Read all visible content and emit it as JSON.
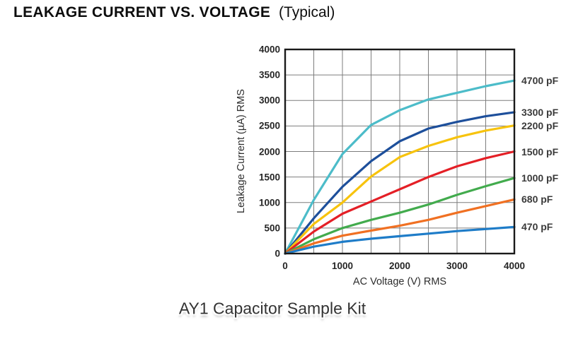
{
  "chart_data": {
    "type": "line",
    "title": "LEAKAGE CURRENT VS. VOLTAGE",
    "subtitle": "(Typical)",
    "xlabel": "AC Voltage (V) RMS",
    "ylabel": "Leakage Current (µA) RMS",
    "watermark": "AY1 Capacitor Sample Kit",
    "xlim": [
      0,
      4000
    ],
    "ylim": [
      0,
      4000
    ],
    "x_ticks": [
      0,
      1000,
      2000,
      3000,
      4000
    ],
    "y_ticks": [
      0,
      500,
      1000,
      1500,
      2000,
      2500,
      3000,
      3500,
      4000
    ],
    "grid": true,
    "grid_step": 500,
    "legend_position": "labels at right ends of curves",
    "x": [
      0,
      500,
      1000,
      1500,
      2000,
      2500,
      3000,
      3500,
      4000
    ],
    "series": [
      {
        "name": "4700 pF",
        "color": "#4CBCC9",
        "values": [
          0,
          1050,
          1950,
          2520,
          2810,
          3020,
          3150,
          3280,
          3390
        ]
      },
      {
        "name": "3300 pF",
        "color": "#1D4F9B",
        "values": [
          0,
          690,
          1310,
          1810,
          2200,
          2450,
          2580,
          2690,
          2770
        ]
      },
      {
        "name": "2200 pF",
        "color": "#F7C30D",
        "values": [
          0,
          580,
          1000,
          1510,
          1890,
          2110,
          2280,
          2410,
          2510
        ]
      },
      {
        "name": "1500 pF",
        "color": "#E41F26",
        "values": [
          0,
          430,
          780,
          1020,
          1260,
          1500,
          1710,
          1870,
          2000
        ]
      },
      {
        "name": "1000 pF",
        "color": "#42AB4D",
        "values": [
          0,
          280,
          500,
          660,
          800,
          960,
          1150,
          1320,
          1480
        ]
      },
      {
        "name": "680 pF",
        "color": "#F07022",
        "values": [
          0,
          200,
          350,
          450,
          545,
          660,
          800,
          930,
          1060
        ]
      },
      {
        "name": "470 pF",
        "color": "#1E7CC8",
        "values": [
          0,
          135,
          230,
          290,
          340,
          390,
          440,
          480,
          520
        ]
      }
    ],
    "colors": {
      "grid": "#7d7d7d",
      "frame": "#1a1a1a",
      "tick_text": "#262626",
      "series_label_text": "#3a3a3a",
      "background": "#ffffff"
    }
  }
}
